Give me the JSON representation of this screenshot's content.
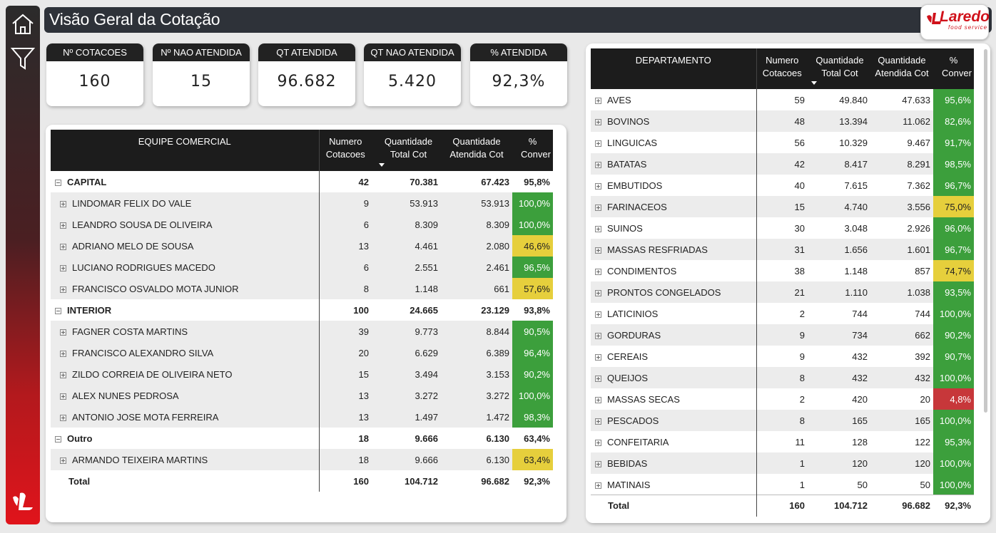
{
  "header": {
    "title": "Visão Geral da Cotação",
    "brand_name": "Laredo",
    "brand_sub": "food service"
  },
  "kpis": [
    {
      "label": "Nº COTACOES",
      "value": "160"
    },
    {
      "label": "Nº NAO ATENDIDA",
      "value": "15"
    },
    {
      "label": "QT ATENDIDA",
      "value": "96.682"
    },
    {
      "label": "QT NAO ATENDIDA",
      "value": "5.420"
    },
    {
      "label": "% ATENDIDA",
      "value": "92,3%"
    }
  ],
  "colors": {
    "green": "#3c9f3c",
    "yellow": "#e6cf3c",
    "red": "#c7373a",
    "header": "#1c1c1c"
  },
  "left_table": {
    "headers": [
      "EQUIPE COMERCIAL",
      "Numero Cotacoes",
      "Quantidade Total Cot",
      "Quantidade Atendida Cot",
      "% Conver"
    ],
    "rows": [
      {
        "type": "group",
        "name": "CAPITAL",
        "n": "42",
        "total": "70.381",
        "atend": "67.423",
        "pct": "95,8%",
        "c": ""
      },
      {
        "type": "item",
        "name": "LINDOMAR FELIX DO VALE",
        "n": "9",
        "total": "53.913",
        "atend": "53.913",
        "pct": "100,0%",
        "c": "green"
      },
      {
        "type": "item",
        "name": "LEANDRO SOUSA DE OLIVEIRA",
        "n": "6",
        "total": "8.309",
        "atend": "8.309",
        "pct": "100,0%",
        "c": "green"
      },
      {
        "type": "item",
        "name": "ADRIANO MELO DE SOUSA",
        "n": "13",
        "total": "4.461",
        "atend": "2.080",
        "pct": "46,6%",
        "c": "yellow"
      },
      {
        "type": "item",
        "name": "LUCIANO RODRIGUES MACEDO",
        "n": "6",
        "total": "2.551",
        "atend": "2.461",
        "pct": "96,5%",
        "c": "green"
      },
      {
        "type": "item",
        "name": "FRANCISCO OSVALDO MOTA JUNIOR",
        "n": "8",
        "total": "1.148",
        "atend": "661",
        "pct": "57,6%",
        "c": "yellow"
      },
      {
        "type": "group",
        "name": "INTERIOR",
        "n": "100",
        "total": "24.665",
        "atend": "23.129",
        "pct": "93,8%",
        "c": ""
      },
      {
        "type": "item",
        "name": "FAGNER COSTA MARTINS",
        "n": "39",
        "total": "9.773",
        "atend": "8.844",
        "pct": "90,5%",
        "c": "green"
      },
      {
        "type": "item",
        "name": "FRANCISCO ALEXANDRO SILVA",
        "n": "20",
        "total": "6.629",
        "atend": "6.389",
        "pct": "96,4%",
        "c": "green"
      },
      {
        "type": "item",
        "name": "ZILDO CORREIA DE OLIVEIRA NETO",
        "n": "15",
        "total": "3.494",
        "atend": "3.153",
        "pct": "90,2%",
        "c": "green"
      },
      {
        "type": "item",
        "name": "ALEX NUNES PEDROSA",
        "n": "13",
        "total": "3.272",
        "atend": "3.272",
        "pct": "100,0%",
        "c": "green"
      },
      {
        "type": "item",
        "name": "ANTONIO JOSE MOTA FERREIRA",
        "n": "13",
        "total": "1.497",
        "atend": "1.472",
        "pct": "98,3%",
        "c": "green"
      },
      {
        "type": "group",
        "name": "Outro",
        "n": "18",
        "total": "9.666",
        "atend": "6.130",
        "pct": "63,4%",
        "c": ""
      },
      {
        "type": "item",
        "name": "ARMANDO TEIXEIRA MARTINS",
        "n": "18",
        "total": "9.666",
        "atend": "6.130",
        "pct": "63,4%",
        "c": "yellow"
      },
      {
        "type": "total",
        "name": "Total",
        "n": "160",
        "total": "104.712",
        "atend": "96.682",
        "pct": "92,3%",
        "c": ""
      }
    ]
  },
  "right_table": {
    "headers": [
      "DEPARTAMENTO",
      "Numero Cotacoes",
      "Quantidade Total Cot",
      "Quantidade Atendida Cot",
      "% Conver"
    ],
    "rows": [
      {
        "name": "AVES",
        "n": "59",
        "total": "49.840",
        "atend": "47.633",
        "pct": "95,6%",
        "c": "green"
      },
      {
        "name": "BOVINOS",
        "n": "48",
        "total": "13.394",
        "atend": "11.062",
        "pct": "82,6%",
        "c": "green"
      },
      {
        "name": "LINGUICAS",
        "n": "56",
        "total": "10.329",
        "atend": "9.467",
        "pct": "91,7%",
        "c": "green"
      },
      {
        "name": "BATATAS",
        "n": "42",
        "total": "8.417",
        "atend": "8.291",
        "pct": "98,5%",
        "c": "green"
      },
      {
        "name": "EMBUTIDOS",
        "n": "40",
        "total": "7.615",
        "atend": "7.362",
        "pct": "96,7%",
        "c": "green"
      },
      {
        "name": "FARINACEOS",
        "n": "15",
        "total": "4.740",
        "atend": "3.556",
        "pct": "75,0%",
        "c": "yellow"
      },
      {
        "name": "SUINOS",
        "n": "30",
        "total": "3.048",
        "atend": "2.926",
        "pct": "96,0%",
        "c": "green"
      },
      {
        "name": "MASSAS RESFRIADAS",
        "n": "31",
        "total": "1.656",
        "atend": "1.601",
        "pct": "96,7%",
        "c": "green"
      },
      {
        "name": "CONDIMENTOS",
        "n": "38",
        "total": "1.148",
        "atend": "857",
        "pct": "74,7%",
        "c": "yellow"
      },
      {
        "name": "PRONTOS CONGELADOS",
        "n": "21",
        "total": "1.110",
        "atend": "1.038",
        "pct": "93,5%",
        "c": "green"
      },
      {
        "name": "LATICINIOS",
        "n": "2",
        "total": "744",
        "atend": "744",
        "pct": "100,0%",
        "c": "green"
      },
      {
        "name": "GORDURAS",
        "n": "9",
        "total": "734",
        "atend": "662",
        "pct": "90,2%",
        "c": "green"
      },
      {
        "name": "CEREAIS",
        "n": "9",
        "total": "432",
        "atend": "392",
        "pct": "90,7%",
        "c": "green"
      },
      {
        "name": "QUEIJOS",
        "n": "8",
        "total": "432",
        "atend": "432",
        "pct": "100,0%",
        "c": "green"
      },
      {
        "name": "MASSAS SECAS",
        "n": "2",
        "total": "420",
        "atend": "20",
        "pct": "4,8%",
        "c": "red"
      },
      {
        "name": "PESCADOS",
        "n": "8",
        "total": "165",
        "atend": "165",
        "pct": "100,0%",
        "c": "green"
      },
      {
        "name": "CONFEITARIA",
        "n": "11",
        "total": "128",
        "atend": "122",
        "pct": "95,3%",
        "c": "green"
      },
      {
        "name": "BEBIDAS",
        "n": "1",
        "total": "120",
        "atend": "120",
        "pct": "100,0%",
        "c": "green"
      },
      {
        "name": "MATINAIS",
        "n": "1",
        "total": "50",
        "atend": "50",
        "pct": "100,0%",
        "c": "green"
      }
    ],
    "total": {
      "name": "Total",
      "n": "160",
      "total": "104.712",
      "atend": "96.682",
      "pct": "92,3%"
    }
  }
}
